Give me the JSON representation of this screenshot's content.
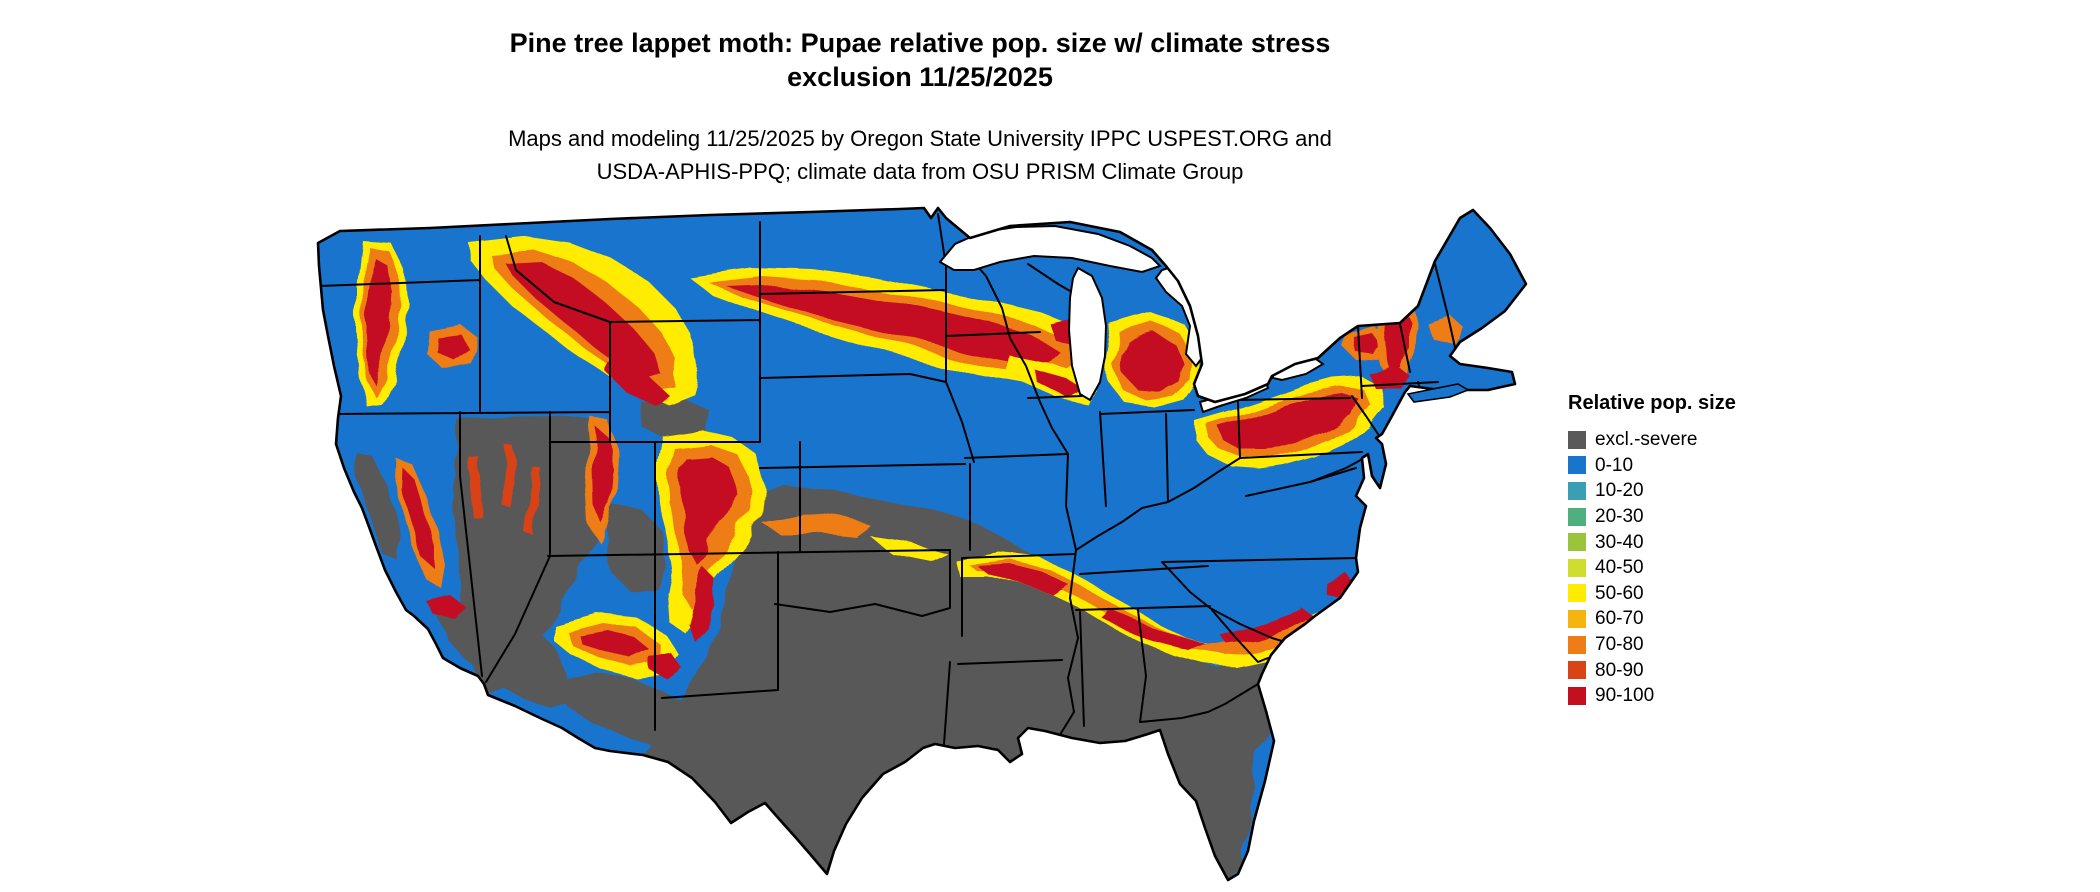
{
  "title": {
    "line1": "Pine tree lappet moth: Pupae relative pop. size w/ climate stress",
    "line2": "exclusion 11/25/2025"
  },
  "subtitle": {
    "line1": "Maps and modeling 11/25/2025 by Oregon State University IPPC USPEST.ORG and",
    "line2": "USDA-APHIS-PPQ; climate data from OSU PRISM Climate Group"
  },
  "legend": {
    "title": "Relative pop. size",
    "items": [
      {
        "label": "excl.-severe",
        "color": "#595959"
      },
      {
        "label": "0-10",
        "color": "#1874CD"
      },
      {
        "label": "10-20",
        "color": "#3A9FB5"
      },
      {
        "label": "20-30",
        "color": "#4FB07E"
      },
      {
        "label": "30-40",
        "color": "#9BC43D"
      },
      {
        "label": "40-50",
        "color": "#CFDD2E"
      },
      {
        "label": "50-60",
        "color": "#FFEC00"
      },
      {
        "label": "60-70",
        "color": "#F6B40E"
      },
      {
        "label": "70-80",
        "color": "#EE7D15"
      },
      {
        "label": "80-90",
        "color": "#D94315"
      },
      {
        "label": "90-100",
        "color": "#C40F20"
      }
    ]
  },
  "map": {
    "region": "Conterminous United States with state borders",
    "base_class": "0-10",
    "high_population_areas": [
      "Cascades (WA/OR)",
      "Northern Rockies (ID/MT/NW WY)",
      "Northern Great Plains band (ND/SD/NE/MN/IA)",
      "Wisconsin and Lower Michigan",
      "Lake Erie shore / western NY / northern PA",
      "Adirondacks and New England",
      "Sierra Nevada (CA)",
      "Wasatch (UT) and Colorado Rockies",
      "Mogollon Rim (AZ/NM)",
      "Ozark-Ouachita (AR) through TN valley to N GA and Carolinas Piedmont"
    ],
    "excluded_areas": [
      "Texas and southern Great Plains",
      "Gulf Coast states and Florida",
      "Great Basin (NV / western UT)",
      "Desert Southwest (S AZ / S NM)",
      "California Central Valley and Mojave"
    ]
  }
}
